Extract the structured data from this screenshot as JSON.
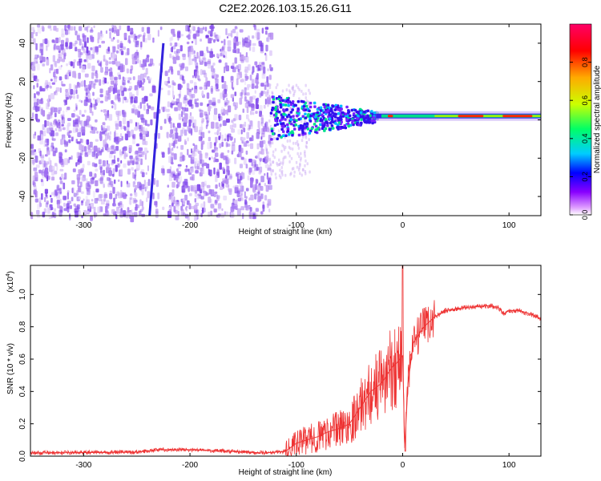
{
  "title": "C2E2.2026.103.15.26.G11",
  "chart_data": [
    {
      "type": "heatmap",
      "name": "spectrogram",
      "xlabel": "Height of straight line (km)",
      "ylabel": "Frequency (Hz)",
      "xlim": [
        -350,
        130
      ],
      "ylim": [
        -50,
        50
      ],
      "xticks": [
        -300,
        -200,
        -100,
        0,
        100
      ],
      "yticks": [
        -40,
        -20,
        0,
        20,
        40
      ],
      "colorbar": {
        "label": "Normalized spectral amplitude",
        "range": [
          0.0,
          1.0
        ],
        "ticks": [
          0.0,
          0.2,
          0.4,
          0.6,
          0.8
        ],
        "tick_labels": [
          "0.0",
          "0.2",
          "0.4",
          "0.6",
          "0.8"
        ],
        "colors": [
          "#ffffff",
          "#cc88ff",
          "#8800ff",
          "#0000ff",
          "#00ccff",
          "#00ff66",
          "#ccff00",
          "#ffaa00",
          "#ff0000",
          "#ff0066"
        ]
      },
      "features": {
        "noise_region_x": [
          -350,
          -125
        ],
        "streak_line": {
          "x_start": -238,
          "y_start": -50,
          "x_end": -225,
          "y_end": 40
        },
        "signal_band_center_hz": 2,
        "signal_start_x": -125
      }
    },
    {
      "type": "line",
      "name": "snr",
      "xlabel": "Height of straight line (km)",
      "ylabel": "SNR (10 * v/v)",
      "y_multiplier": "(x10",
      "y_multiplier_exp": "4",
      "y_multiplier_close": ")",
      "xlim": [
        -350,
        130
      ],
      "ylim": [
        0,
        1.18
      ],
      "xticks": [
        -300,
        -200,
        -100,
        0,
        100
      ],
      "yticks": [
        0.0,
        0.2,
        0.4,
        0.6,
        0.8,
        1.0
      ],
      "ytick_labels": [
        "0.0",
        "0.2",
        "0.4",
        "0.6",
        "0.8",
        "1.0"
      ],
      "color": "#ee3333",
      "series": [
        {
          "name": "SNR",
          "x": [
            -350,
            -250,
            -230,
            -200,
            -130,
            -110,
            -100,
            -90,
            -80,
            -70,
            -60,
            -50,
            -40,
            -30,
            -20,
            -10,
            -5,
            0,
            2,
            5,
            10,
            20,
            30,
            40,
            60,
            80,
            90,
            95,
            100,
            110,
            120,
            130
          ],
          "y": [
            0.02,
            0.025,
            0.04,
            0.04,
            0.02,
            0.03,
            0.08,
            0.1,
            0.12,
            0.15,
            0.17,
            0.2,
            0.3,
            0.4,
            0.45,
            0.55,
            0.58,
            0.62,
            0.05,
            0.45,
            0.7,
            0.8,
            0.86,
            0.9,
            0.92,
            0.93,
            0.92,
            0.88,
            0.9,
            0.9,
            0.88,
            0.85
          ]
        }
      ]
    }
  ]
}
